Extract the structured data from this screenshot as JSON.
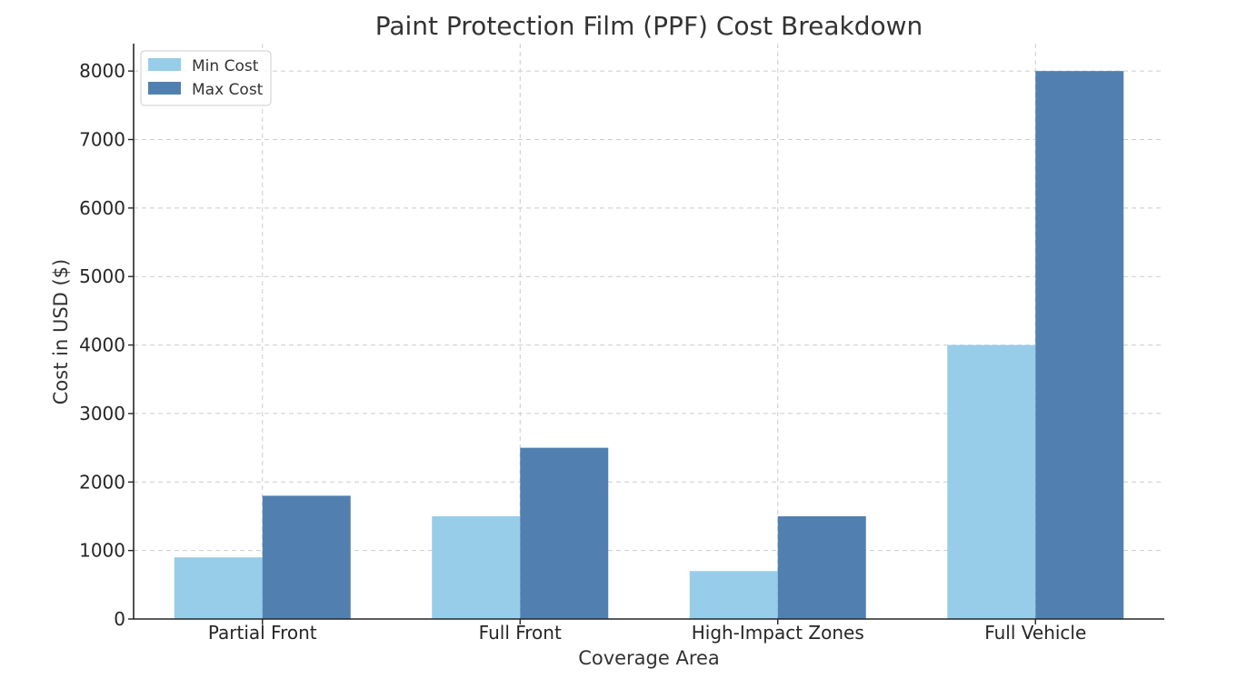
{
  "chart_data": {
    "type": "bar",
    "title": "Paint Protection Film (PPF) Cost Breakdown",
    "xlabel": "Coverage Area",
    "ylabel": "Cost in USD ($)",
    "categories": [
      "Partial Front",
      "Full Front",
      "High-Impact Zones",
      "Full Vehicle"
    ],
    "series": [
      {
        "name": "Min Cost",
        "color": "#97cde9",
        "values": [
          900,
          1500,
          700,
          4000
        ]
      },
      {
        "name": "Max Cost",
        "color": "#5180b0",
        "values": [
          1800,
          2500,
          1500,
          8000
        ]
      }
    ],
    "ylim": [
      0,
      8400
    ],
    "yticks": [
      0,
      1000,
      2000,
      3000,
      4000,
      5000,
      6000,
      7000,
      8000
    ],
    "grid": true,
    "legend_position": "top-left"
  }
}
